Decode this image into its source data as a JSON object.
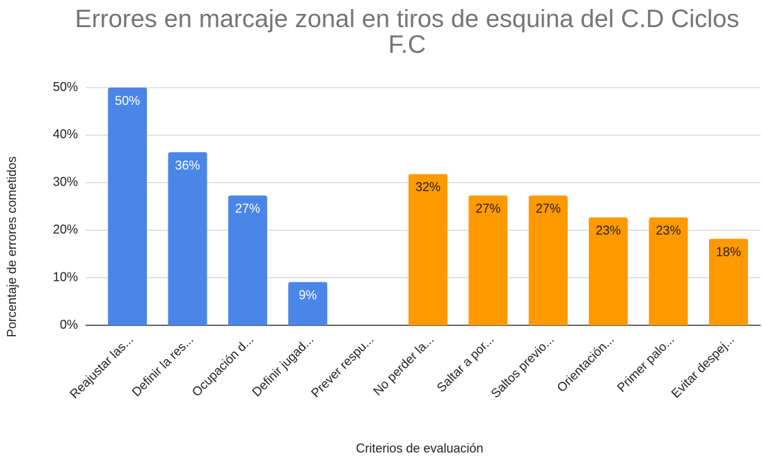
{
  "chart_data": {
    "type": "bar",
    "title": "Errores en marcaje zonal en tiros de esquina del C.D Ciclos F.C",
    "x_label": "Criterios de evaluación",
    "y_label": "Porcentaje de errores cometidos",
    "categories": [
      "Reajustar las...",
      "Definir la res...",
      "Ocupación d...",
      "Definir jugad...",
      "Prever respu...",
      "No perder la...",
      "Saltar a por...",
      "Saltos previo...",
      "Orientación...",
      "Primer palo...",
      "Evitar despej..."
    ],
    "values": [
      50,
      36.4,
      27.3,
      9.1,
      null,
      31.8,
      27.3,
      27.3,
      22.7,
      22.7,
      18.2
    ],
    "value_labels": [
      "50%",
      "36%",
      "27%",
      "9%",
      null,
      "32%",
      "27%",
      "27%",
      "23%",
      "23%",
      "18%"
    ],
    "colors": [
      "#4a86e8",
      "#4a86e8",
      "#4a86e8",
      "#4a86e8",
      "#4a86e8",
      "#ff9900",
      "#ff9900",
      "#ff9900",
      "#ff9900",
      "#ff9900",
      "#ff9900"
    ],
    "label_colors": [
      "#ffffff",
      "#ffffff",
      "#ffffff",
      "#ffffff",
      "#ffffff",
      "#222222",
      "#222222",
      "#222222",
      "#222222",
      "#222222",
      "#222222"
    ],
    "ylim": [
      0,
      50
    ],
    "yticks": [
      {
        "value": 0,
        "label": "0%"
      },
      {
        "value": 10,
        "label": "10%"
      },
      {
        "value": 20,
        "label": "20%"
      },
      {
        "value": 30,
        "label": "30%"
      },
      {
        "value": 40,
        "label": "40%"
      },
      {
        "value": 50,
        "label": "50%"
      }
    ],
    "grid": true
  }
}
